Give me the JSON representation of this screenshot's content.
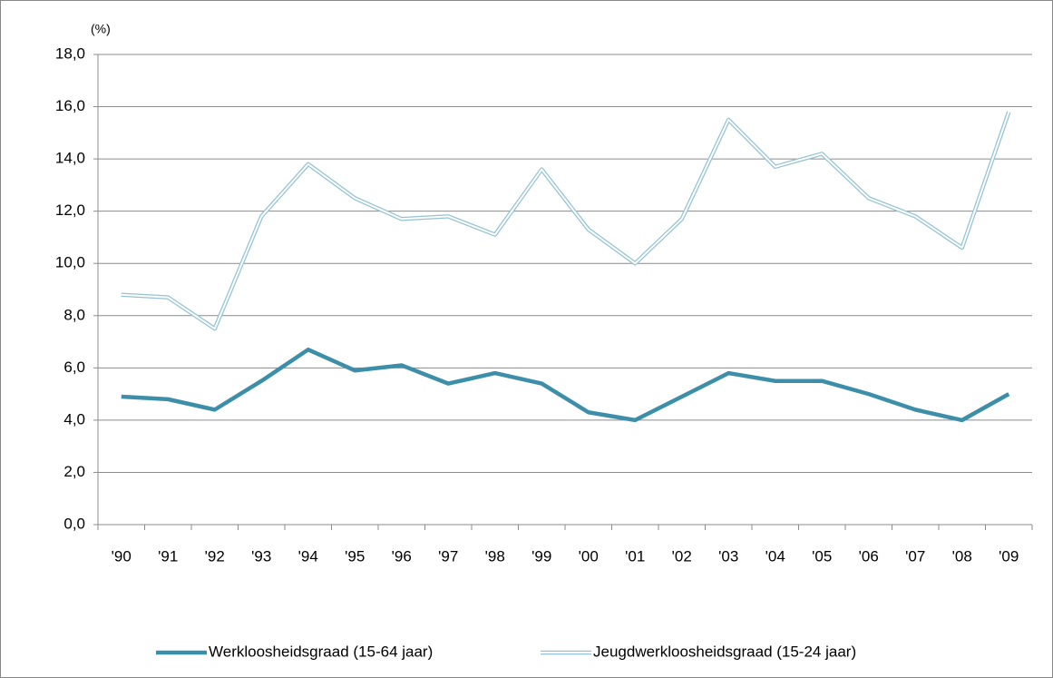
{
  "chart_data": {
    "type": "line",
    "ylabel": "(%)",
    "categories": [
      "'90",
      "'91",
      "'92",
      "'93",
      "'94",
      "'95",
      "'96",
      "'97",
      "'98",
      "'99",
      "'00",
      "'01",
      "'02",
      "'03",
      "'04",
      "'05",
      "'06",
      "'07",
      "'08",
      "'09"
    ],
    "series": [
      {
        "name": "Werkloosheidsgraad (15-64 jaar)",
        "color": "#3d8fa9",
        "line_style": "solid",
        "values": [
          4.9,
          4.8,
          4.4,
          5.5,
          6.7,
          5.9,
          6.1,
          5.4,
          5.8,
          5.4,
          4.3,
          4.0,
          4.9,
          5.8,
          5.5,
          5.5,
          5.0,
          4.4,
          4.0,
          5.0
        ]
      },
      {
        "name": "Jeugdwerkloosheidsgraad (15-24 jaar)",
        "color": "#93c3d3",
        "line_style": "double",
        "values": [
          8.8,
          8.7,
          7.5,
          11.8,
          13.8,
          12.5,
          11.7,
          11.8,
          11.1,
          13.6,
          11.3,
          10.0,
          11.7,
          15.5,
          13.7,
          14.2,
          12.5,
          11.8,
          10.6,
          15.8
        ]
      }
    ],
    "ylim": [
      0,
      18
    ],
    "yticks": [
      {
        "value": 0,
        "label": "0,0"
      },
      {
        "value": 2,
        "label": "2,0"
      },
      {
        "value": 4,
        "label": "4,0"
      },
      {
        "value": 6,
        "label": "6,0"
      },
      {
        "value": 8,
        "label": "8,0"
      },
      {
        "value": 10,
        "label": "10,0"
      },
      {
        "value": 12,
        "label": "12,0"
      },
      {
        "value": 14,
        "label": "14,0"
      },
      {
        "value": 16,
        "label": "16,0"
      },
      {
        "value": 18,
        "label": "18,0"
      }
    ],
    "grid": true,
    "legend": "bottom"
  }
}
